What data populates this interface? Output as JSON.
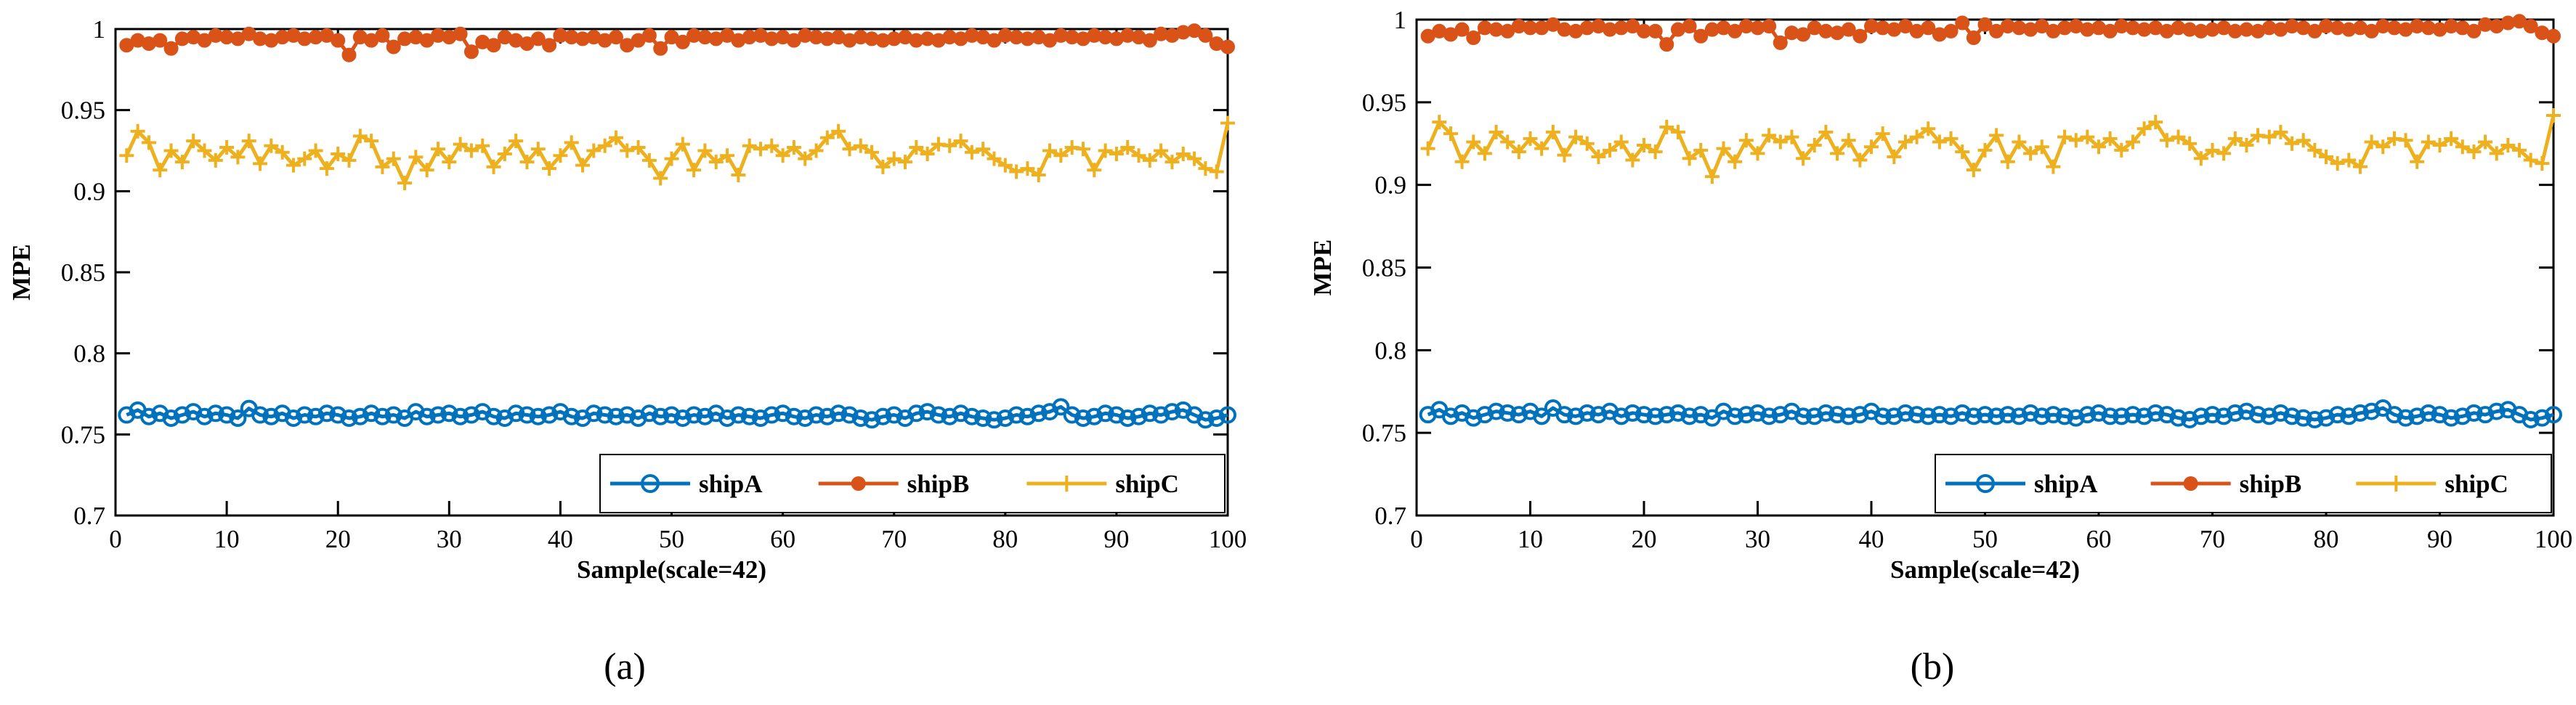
{
  "chart_data": [
    {
      "type": "line",
      "caption": "(a)",
      "xlabel": "Sample(scale=42)",
      "ylabel": "MPE",
      "xlim": [
        0,
        100
      ],
      "ylim": [
        0.7,
        1
      ],
      "xticks": [
        "0",
        "10",
        "20",
        "30",
        "40",
        "50",
        "60",
        "70",
        "80",
        "90",
        "100"
      ],
      "yticks": [
        "0.7",
        "0.75",
        "0.8",
        "0.85",
        "0.9",
        "0.95",
        "1"
      ],
      "grid": false,
      "legend_position": "bottom-right",
      "series": [
        {
          "name": "shipA",
          "color": "#0072BD",
          "marker": "circle",
          "values": [
            0.762,
            0.765,
            0.761,
            0.763,
            0.76,
            0.762,
            0.764,
            0.761,
            0.763,
            0.762,
            0.76,
            0.766,
            0.762,
            0.761,
            0.763,
            0.76,
            0.762,
            0.761,
            0.763,
            0.762,
            0.76,
            0.761,
            0.763,
            0.761,
            0.762,
            0.76,
            0.764,
            0.761,
            0.762,
            0.763,
            0.761,
            0.762,
            0.764,
            0.761,
            0.76,
            0.763,
            0.762,
            0.761,
            0.762,
            0.764,
            0.761,
            0.76,
            0.763,
            0.762,
            0.761,
            0.762,
            0.76,
            0.763,
            0.761,
            0.762,
            0.76,
            0.762,
            0.761,
            0.763,
            0.76,
            0.762,
            0.761,
            0.76,
            0.762,
            0.763,
            0.761,
            0.76,
            0.762,
            0.761,
            0.763,
            0.762,
            0.76,
            0.759,
            0.761,
            0.762,
            0.76,
            0.763,
            0.764,
            0.762,
            0.761,
            0.763,
            0.761,
            0.76,
            0.759,
            0.76,
            0.762,
            0.761,
            0.763,
            0.764,
            0.767,
            0.762,
            0.76,
            0.761,
            0.763,
            0.762,
            0.76,
            0.761,
            0.763,
            0.762,
            0.764,
            0.765,
            0.762,
            0.759,
            0.76,
            0.762
          ]
        },
        {
          "name": "shipB",
          "color": "#D95319",
          "marker": "filled-circle",
          "values": [
            0.99,
            0.993,
            0.991,
            0.993,
            0.988,
            0.994,
            0.995,
            0.993,
            0.996,
            0.995,
            0.994,
            0.997,
            0.994,
            0.993,
            0.995,
            0.996,
            0.994,
            0.995,
            0.996,
            0.993,
            0.984,
            0.995,
            0.993,
            0.996,
            0.989,
            0.994,
            0.995,
            0.993,
            0.996,
            0.995,
            0.997,
            0.986,
            0.992,
            0.99,
            0.995,
            0.993,
            0.991,
            0.994,
            0.99,
            0.996,
            0.995,
            0.994,
            0.995,
            0.993,
            0.995,
            0.99,
            0.993,
            0.996,
            0.988,
            0.995,
            0.992,
            0.996,
            0.995,
            0.994,
            0.996,
            0.993,
            0.995,
            0.996,
            0.994,
            0.995,
            0.993,
            0.996,
            0.995,
            0.994,
            0.995,
            0.993,
            0.995,
            0.994,
            0.993,
            0.994,
            0.995,
            0.993,
            0.994,
            0.993,
            0.995,
            0.994,
            0.996,
            0.995,
            0.993,
            0.996,
            0.995,
            0.994,
            0.995,
            0.993,
            0.996,
            0.995,
            0.994,
            0.996,
            0.995,
            0.994,
            0.996,
            0.995,
            0.993,
            0.997,
            0.996,
            0.998,
            0.999,
            0.996,
            0.991,
            0.989
          ]
        },
        {
          "name": "shipC",
          "color": "#EDB120",
          "marker": "plus",
          "values": [
            0.922,
            0.937,
            0.93,
            0.913,
            0.925,
            0.918,
            0.931,
            0.925,
            0.919,
            0.927,
            0.921,
            0.931,
            0.917,
            0.928,
            0.924,
            0.916,
            0.92,
            0.925,
            0.914,
            0.923,
            0.919,
            0.934,
            0.931,
            0.915,
            0.92,
            0.905,
            0.921,
            0.913,
            0.926,
            0.918,
            0.929,
            0.925,
            0.928,
            0.915,
            0.923,
            0.931,
            0.918,
            0.926,
            0.914,
            0.922,
            0.93,
            0.916,
            0.925,
            0.928,
            0.933,
            0.925,
            0.927,
            0.919,
            0.908,
            0.92,
            0.929,
            0.913,
            0.925,
            0.918,
            0.922,
            0.91,
            0.928,
            0.926,
            0.928,
            0.922,
            0.927,
            0.92,
            0.925,
            0.933,
            0.937,
            0.926,
            0.928,
            0.924,
            0.915,
            0.92,
            0.918,
            0.927,
            0.923,
            0.929,
            0.928,
            0.931,
            0.924,
            0.926,
            0.92,
            0.916,
            0.912,
            0.914,
            0.91,
            0.925,
            0.922,
            0.927,
            0.926,
            0.913,
            0.925,
            0.923,
            0.927,
            0.922,
            0.919,
            0.925,
            0.918,
            0.923,
            0.92,
            0.914,
            0.912,
            0.942
          ]
        }
      ]
    },
    {
      "type": "line",
      "caption": "(b)",
      "xlabel": "Sample(scale=42)",
      "ylabel": "MPE",
      "xlim": [
        0,
        100
      ],
      "ylim": [
        0.7,
        1
      ],
      "xticks": [
        "0",
        "10",
        "20",
        "30",
        "40",
        "50",
        "60",
        "70",
        "80",
        "90",
        "100"
      ],
      "yticks": [
        "0.7",
        "0.75",
        "0.8",
        "0.85",
        "0.9",
        "0.95",
        "1"
      ],
      "grid": false,
      "legend_position": "bottom-right",
      "series": [
        {
          "name": "shipA",
          "color": "#0072BD",
          "marker": "circle",
          "values": [
            0.761,
            0.764,
            0.76,
            0.762,
            0.759,
            0.761,
            0.763,
            0.762,
            0.761,
            0.763,
            0.76,
            0.765,
            0.761,
            0.76,
            0.762,
            0.761,
            0.763,
            0.76,
            0.762,
            0.761,
            0.76,
            0.761,
            0.762,
            0.76,
            0.761,
            0.759,
            0.763,
            0.76,
            0.761,
            0.762,
            0.76,
            0.761,
            0.763,
            0.76,
            0.76,
            0.762,
            0.761,
            0.76,
            0.761,
            0.763,
            0.76,
            0.76,
            0.762,
            0.761,
            0.76,
            0.761,
            0.76,
            0.762,
            0.76,
            0.761,
            0.76,
            0.761,
            0.76,
            0.762,
            0.76,
            0.761,
            0.76,
            0.759,
            0.761,
            0.762,
            0.76,
            0.76,
            0.761,
            0.76,
            0.762,
            0.761,
            0.759,
            0.758,
            0.76,
            0.761,
            0.76,
            0.762,
            0.763,
            0.761,
            0.76,
            0.762,
            0.76,
            0.759,
            0.758,
            0.759,
            0.761,
            0.76,
            0.762,
            0.763,
            0.765,
            0.761,
            0.759,
            0.76,
            0.762,
            0.761,
            0.759,
            0.76,
            0.762,
            0.761,
            0.763,
            0.764,
            0.761,
            0.758,
            0.759,
            0.761
          ]
        },
        {
          "name": "shipB",
          "color": "#D95319",
          "marker": "filled-circle",
          "values": [
            0.99,
            0.993,
            0.991,
            0.994,
            0.989,
            0.995,
            0.994,
            0.993,
            0.996,
            0.995,
            0.995,
            0.997,
            0.994,
            0.993,
            0.995,
            0.996,
            0.994,
            0.995,
            0.996,
            0.993,
            0.993,
            0.985,
            0.994,
            0.996,
            0.99,
            0.994,
            0.995,
            0.993,
            0.996,
            0.995,
            0.996,
            0.986,
            0.992,
            0.991,
            0.995,
            0.993,
            0.992,
            0.994,
            0.99,
            0.996,
            0.995,
            0.994,
            0.996,
            0.993,
            0.995,
            0.991,
            0.993,
            0.998,
            0.989,
            0.997,
            0.993,
            0.996,
            0.995,
            0.994,
            0.996,
            0.993,
            0.995,
            0.996,
            0.994,
            0.995,
            0.993,
            0.996,
            0.995,
            0.994,
            0.995,
            0.993,
            0.995,
            0.994,
            0.993,
            0.994,
            0.995,
            0.993,
            0.994,
            0.993,
            0.995,
            0.994,
            0.996,
            0.995,
            0.993,
            0.996,
            0.995,
            0.994,
            0.995,
            0.993,
            0.996,
            0.995,
            0.994,
            0.996,
            0.995,
            0.994,
            0.996,
            0.995,
            0.993,
            0.997,
            0.996,
            0.998,
            0.999,
            0.996,
            0.992,
            0.99
          ]
        },
        {
          "name": "shipC",
          "color": "#EDB120",
          "marker": "plus",
          "values": [
            0.922,
            0.938,
            0.931,
            0.914,
            0.926,
            0.919,
            0.932,
            0.926,
            0.92,
            0.928,
            0.922,
            0.932,
            0.918,
            0.929,
            0.925,
            0.917,
            0.921,
            0.926,
            0.915,
            0.924,
            0.92,
            0.935,
            0.932,
            0.916,
            0.921,
            0.905,
            0.922,
            0.914,
            0.927,
            0.919,
            0.93,
            0.926,
            0.929,
            0.916,
            0.924,
            0.932,
            0.919,
            0.927,
            0.915,
            0.923,
            0.931,
            0.917,
            0.926,
            0.929,
            0.934,
            0.926,
            0.928,
            0.92,
            0.909,
            0.921,
            0.93,
            0.914,
            0.926,
            0.919,
            0.923,
            0.911,
            0.929,
            0.927,
            0.929,
            0.923,
            0.928,
            0.921,
            0.926,
            0.934,
            0.938,
            0.927,
            0.929,
            0.925,
            0.916,
            0.921,
            0.919,
            0.928,
            0.924,
            0.93,
            0.929,
            0.932,
            0.925,
            0.927,
            0.921,
            0.917,
            0.913,
            0.915,
            0.911,
            0.926,
            0.923,
            0.928,
            0.927,
            0.914,
            0.926,
            0.924,
            0.928,
            0.923,
            0.92,
            0.926,
            0.919,
            0.924,
            0.921,
            0.915,
            0.913,
            0.942
          ]
        }
      ]
    }
  ]
}
